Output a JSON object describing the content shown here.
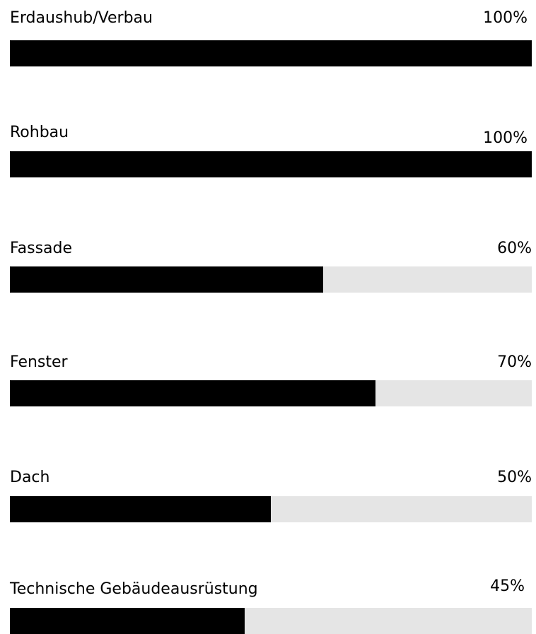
{
  "colors": {
    "bar_fill": "#000000",
    "bar_track": "#e5e5e5",
    "text": "#000000",
    "background": "#ffffff"
  },
  "items": [
    {
      "label": "Erdaushub/Verbau",
      "percent_text": "100%",
      "value": 100
    },
    {
      "label": "Rohbau",
      "percent_text": "100%",
      "value": 100
    },
    {
      "label": "Fassade",
      "percent_text": "60%",
      "value": 60
    },
    {
      "label": "Fenster",
      "percent_text": "70%",
      "value": 70
    },
    {
      "label": "Dach",
      "percent_text": "50%",
      "value": 50
    },
    {
      "label": "Technische Gebäudeausrüstung",
      "percent_text": "45%",
      "value": 45
    }
  ]
}
